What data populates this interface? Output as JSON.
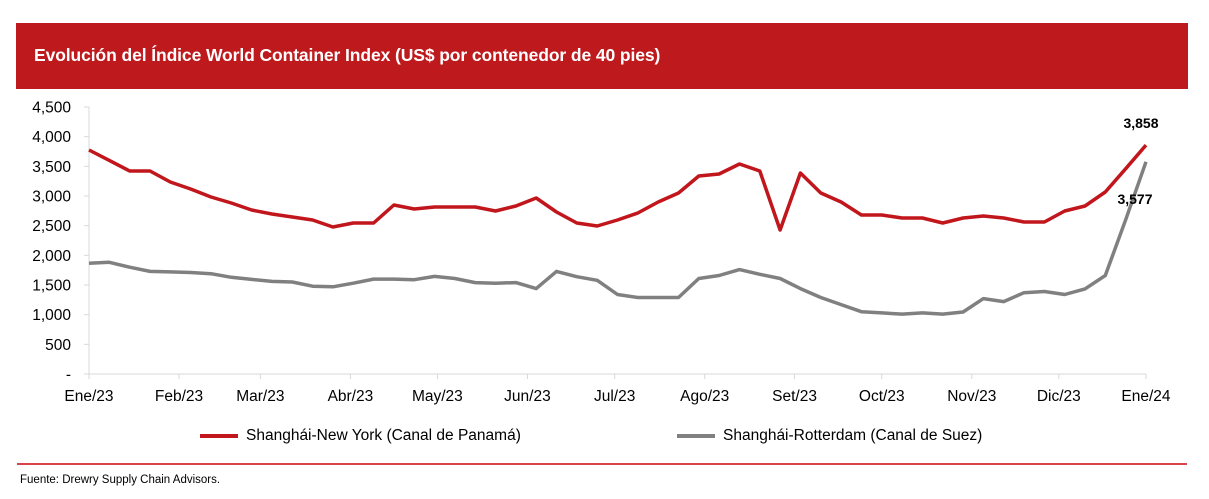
{
  "title": "Evolución del Índice World Container Index (US$ por contenedor de 40 pies)",
  "source": "Fuente: Drewry Supply Chain Advisors.",
  "colors": {
    "title_bar": "#BE1A1D",
    "series_red": "#C0161C",
    "series_gray": "#808080",
    "divider": "#D9434A"
  },
  "chart_data": {
    "type": "line",
    "title": "Evolución del Índice World Container Index (US$ por contenedor de 40 pies)",
    "xlabel": "",
    "ylabel": "",
    "ylim": [
      0,
      4500
    ],
    "yticks": [
      0,
      500,
      1000,
      1500,
      2000,
      2500,
      3000,
      3500,
      4000,
      4500
    ],
    "ytick_labels": [
      "-",
      "500",
      "1,000",
      "1,500",
      "2,000",
      "2,500",
      "3,000",
      "3,500",
      "4,000",
      "4,500"
    ],
    "x_unit": "weeks since Ene/23",
    "xlim": [
      0,
      52
    ],
    "xticks": [
      0,
      4.43,
      8.43,
      12.86,
      17.14,
      21.57,
      25.86,
      30.29,
      34.71,
      39.0,
      43.43,
      47.71,
      52
    ],
    "xtick_labels": [
      "Ene/23",
      "Feb/23",
      "Mar/23",
      "Abr/23",
      "May/23",
      "Jun/23",
      "Jul/23",
      "Ago/23",
      "Set/23",
      "Oct/23",
      "Nov/23",
      "Dic/23",
      "Ene/24"
    ],
    "grid": false,
    "legend_position": "bottom",
    "x": [
      0,
      1,
      2,
      3,
      4,
      5,
      6,
      7,
      8,
      9,
      10,
      11,
      12,
      13,
      14,
      15,
      16,
      17,
      18,
      19,
      20,
      21,
      22,
      23,
      24,
      25,
      26,
      27,
      28,
      29,
      30,
      31,
      32,
      33,
      34,
      35,
      36,
      37,
      38,
      39,
      40,
      41,
      42,
      43,
      44,
      45,
      46,
      47,
      48,
      49,
      50,
      51,
      52
    ],
    "series": [
      {
        "name": "Shanghái-New York (Canal de Panamá)",
        "color": "#C0161C",
        "values": [
          3775,
          3600,
          3421,
          3421,
          3236,
          3118,
          2983,
          2882,
          2764,
          2697,
          2646,
          2596,
          2478,
          2545,
          2545,
          2848,
          2781,
          2815,
          2815,
          2815,
          2747,
          2831,
          2966,
          2730,
          2545,
          2494,
          2596,
          2713,
          2899,
          3051,
          3337,
          3371,
          3539,
          3421,
          2427,
          3388,
          3051,
          2899,
          2680,
          2680,
          2629,
          2629,
          2545,
          2629,
          2663,
          2629,
          2562,
          2562,
          2747,
          2831,
          3067,
          3460,
          3858
        ],
        "end_label": "3,858"
      },
      {
        "name": "Shanghái-Rotterdam (Canal de Suez)",
        "color": "#808080",
        "values": [
          1865,
          1882,
          1800,
          1730,
          1720,
          1710,
          1690,
          1630,
          1595,
          1560,
          1550,
          1480,
          1470,
          1530,
          1600,
          1600,
          1590,
          1645,
          1610,
          1540,
          1530,
          1540,
          1440,
          1730,
          1640,
          1580,
          1340,
          1290,
          1290,
          1290,
          1610,
          1660,
          1760,
          1680,
          1610,
          1440,
          1290,
          1170,
          1050,
          1030,
          1010,
          1030,
          1010,
          1045,
          1270,
          1220,
          1370,
          1390,
          1340,
          1435,
          1660,
          2600,
          3577
        ],
        "end_label": "3,577"
      }
    ]
  }
}
